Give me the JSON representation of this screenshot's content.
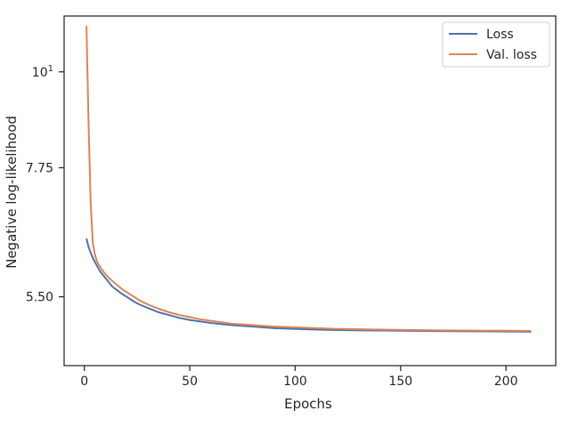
{
  "chart_data": {
    "type": "line",
    "xlabel": "Epochs",
    "ylabel": "Negative log-likelihood",
    "yscale": "log",
    "xlim": [
      -9.6,
      223.6
    ],
    "ylim": [
      4.58,
      11.6
    ],
    "xticks": [
      {
        "value": 0,
        "label": "0"
      },
      {
        "value": 50,
        "label": "50"
      },
      {
        "value": 100,
        "label": "100"
      },
      {
        "value": 150,
        "label": "150"
      },
      {
        "value": 200,
        "label": "200"
      }
    ],
    "yticks": [
      {
        "value": 5.5,
        "label": "5.50"
      },
      {
        "value": 7.75,
        "label": "7.75"
      },
      {
        "value": 10,
        "label": "10",
        "sup": "1"
      }
    ],
    "legend": {
      "position": "top-right"
    },
    "grid": false,
    "series": [
      {
        "name": "Loss",
        "color": "#4c72b0",
        "points": [
          [
            1,
            6.42
          ],
          [
            2,
            6.28
          ],
          [
            3,
            6.18
          ],
          [
            4,
            6.1
          ],
          [
            5,
            6.03
          ],
          [
            6,
            5.97
          ],
          [
            7,
            5.91
          ],
          [
            8,
            5.86
          ],
          [
            9,
            5.82
          ],
          [
            10,
            5.78
          ],
          [
            11,
            5.74
          ],
          [
            12,
            5.7
          ],
          [
            13,
            5.66
          ],
          [
            14,
            5.63
          ],
          [
            15,
            5.61
          ],
          [
            17,
            5.56
          ],
          [
            20,
            5.5
          ],
          [
            23,
            5.44
          ],
          [
            26,
            5.39
          ],
          [
            30,
            5.34
          ],
          [
            35,
            5.28
          ],
          [
            40,
            5.24
          ],
          [
            45,
            5.2
          ],
          [
            50,
            5.17
          ],
          [
            55,
            5.15
          ],
          [
            60,
            5.13
          ],
          [
            70,
            5.1
          ],
          [
            80,
            5.08
          ],
          [
            90,
            5.06
          ],
          [
            100,
            5.05
          ],
          [
            110,
            5.04
          ],
          [
            120,
            5.035
          ],
          [
            130,
            5.03
          ],
          [
            140,
            5.028
          ],
          [
            150,
            5.025
          ],
          [
            160,
            5.022
          ],
          [
            170,
            5.02
          ],
          [
            180,
            5.018
          ],
          [
            190,
            5.016
          ],
          [
            200,
            5.015
          ],
          [
            212,
            5.012
          ]
        ]
      },
      {
        "name": "Val. loss",
        "color": "#dd8452",
        "points": [
          [
            1,
            11.3
          ],
          [
            2,
            8.7
          ],
          [
            3,
            7.05
          ],
          [
            4,
            6.35
          ],
          [
            5,
            6.15
          ],
          [
            6,
            6.04
          ],
          [
            7,
            5.98
          ],
          [
            8,
            5.93
          ],
          [
            9,
            5.88
          ],
          [
            10,
            5.84
          ],
          [
            12,
            5.77
          ],
          [
            15,
            5.69
          ],
          [
            18,
            5.61
          ],
          [
            20,
            5.57
          ],
          [
            23,
            5.51
          ],
          [
            26,
            5.45
          ],
          [
            30,
            5.39
          ],
          [
            35,
            5.33
          ],
          [
            40,
            5.28
          ],
          [
            45,
            5.24
          ],
          [
            50,
            5.21
          ],
          [
            55,
            5.18
          ],
          [
            60,
            5.16
          ],
          [
            70,
            5.12
          ],
          [
            80,
            5.1
          ],
          [
            90,
            5.08
          ],
          [
            100,
            5.07
          ],
          [
            110,
            5.06
          ],
          [
            120,
            5.05
          ],
          [
            130,
            5.045
          ],
          [
            140,
            5.04
          ],
          [
            150,
            5.036
          ],
          [
            160,
            5.033
          ],
          [
            170,
            5.03
          ],
          [
            180,
            5.028
          ],
          [
            190,
            5.026
          ],
          [
            200,
            5.025
          ],
          [
            212,
            5.022
          ]
        ]
      }
    ]
  }
}
